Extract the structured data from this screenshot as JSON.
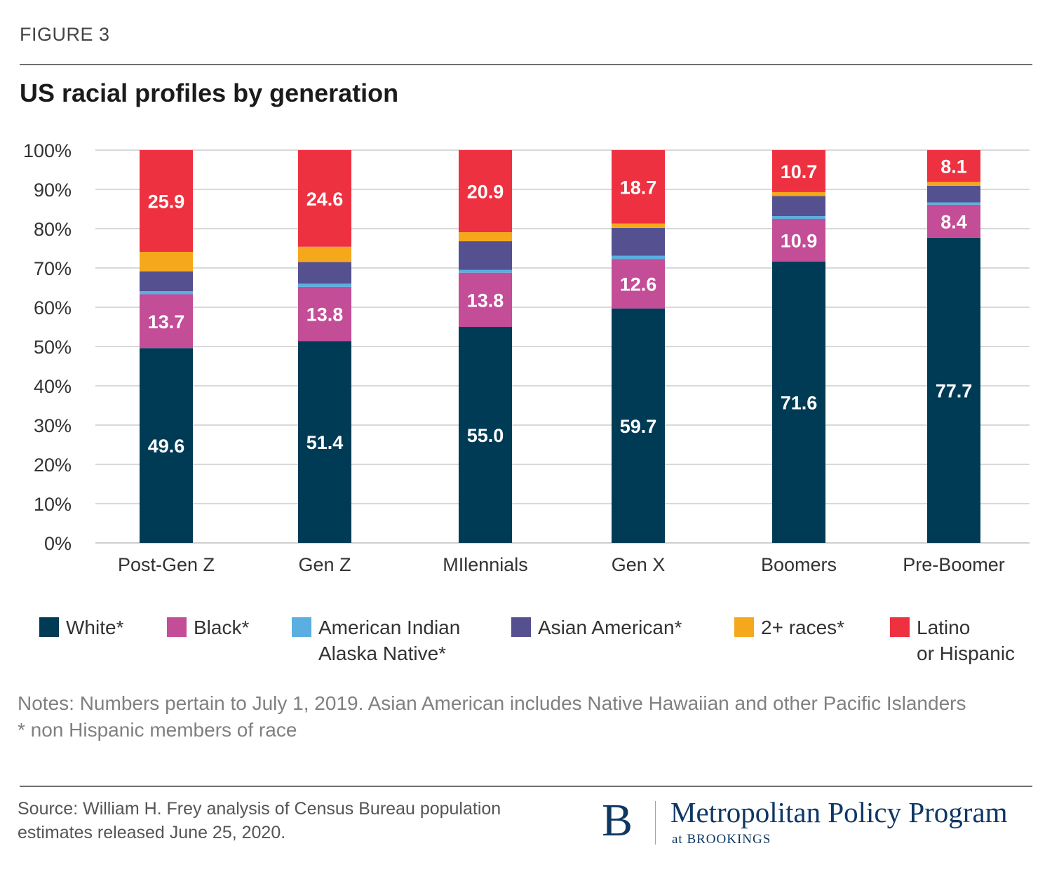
{
  "figure_label": "FIGURE 3",
  "chart_data": {
    "type": "bar",
    "stacked": true,
    "title": "US racial profiles by generation",
    "categories": [
      "Post-Gen Z",
      "Gen Z",
      "MIlennials",
      "Gen X",
      "Boomers",
      "Pre-Boomer"
    ],
    "yticks": [
      "0%",
      "10%",
      "20%",
      "30%",
      "40%",
      "50%",
      "60%",
      "70%",
      "80%",
      "90%",
      "100%"
    ],
    "ylim": [
      0,
      100
    ],
    "grid": true,
    "series": [
      {
        "name": "White*",
        "color": "#003b56",
        "values": [
          49.6,
          51.4,
          55.0,
          59.7,
          71.6,
          77.7
        ],
        "labels": [
          "49.6",
          "51.4",
          "55.0",
          "59.7",
          "71.6",
          "77.7"
        ]
      },
      {
        "name": "Black*",
        "color": "#c34d97",
        "values": [
          13.7,
          13.8,
          13.8,
          12.6,
          10.9,
          8.4
        ],
        "labels": [
          "13.7",
          "13.8",
          "13.8",
          "12.6",
          "10.9",
          "8.4"
        ]
      },
      {
        "name": "American Indian Alaska Native*",
        "color": "#5aaee0",
        "values": [
          0.8,
          0.8,
          0.7,
          0.8,
          0.7,
          0.6
        ],
        "labels": []
      },
      {
        "name": "Asian American*",
        "color": "#55508f",
        "values": [
          5.0,
          5.5,
          7.3,
          7.1,
          5.1,
          4.2
        ],
        "labels": []
      },
      {
        "name": "2+ races*",
        "color": "#f6a81c",
        "values": [
          5.0,
          3.9,
          2.3,
          1.1,
          1.0,
          1.0
        ],
        "labels": []
      },
      {
        "name": "Latino or Hispanic",
        "color": "#ee3140",
        "values": [
          25.9,
          24.6,
          20.9,
          18.7,
          10.7,
          8.1
        ],
        "labels": [
          "25.9",
          "24.6",
          "20.9",
          "18.7",
          "10.7",
          "8.1"
        ]
      }
    ]
  },
  "legend": [
    {
      "label": "White*",
      "color": "#003b56"
    },
    {
      "label": "Black*",
      "color": "#c34d97"
    },
    {
      "label": "American Indian\nAlaska Native*",
      "color": "#5aaee0"
    },
    {
      "label": "Asian American*",
      "color": "#55508f"
    },
    {
      "label": "2+ races*",
      "color": "#f6a81c"
    },
    {
      "label": "Latino\nor Hispanic",
      "color": "#ee3140"
    }
  ],
  "notes": [
    "Notes: Numbers pertain to July 1, 2019. Asian American includes Native Hawaiian and other Pacific Islanders",
    "* non Hispanic members of race"
  ],
  "source": "Source: William H. Frey analysis of Census Bureau population estimates released June 25, 2020.",
  "brand": {
    "mark": "B",
    "name": "Metropolitan Policy Program",
    "sub": "at BROOKINGS"
  }
}
